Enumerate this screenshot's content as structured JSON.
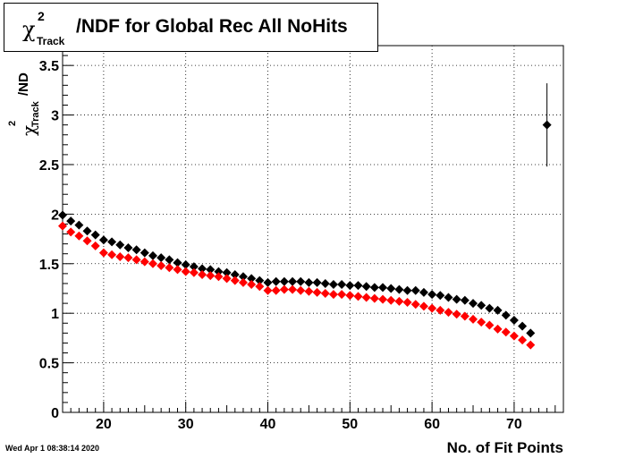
{
  "title": {
    "symbol": "χ",
    "superscript": "2",
    "subscript": "Track",
    "rest": "/NDF for Global Rec All NoHits"
  },
  "ylabel": {
    "symbol": "χ",
    "superscript": "2",
    "subscript": "Track",
    "rest": "/ND"
  },
  "xlabel": "No. of Fit Points",
  "timestamp": "Wed Apr  1 08:38:14 2020",
  "colors": {
    "series_black": "#000000",
    "series_red": "#ff0000",
    "background": "#ffffff"
  },
  "chart_data": {
    "type": "scatter",
    "title": "χ2Track/NDF for Global Rec All NoHits",
    "xlabel": "No. of Fit Points",
    "ylabel": "χ2Track/ND",
    "xlim": [
      15,
      76
    ],
    "ylim": [
      0,
      3.7
    ],
    "grid": true,
    "x_ticks": [
      20,
      30,
      40,
      50,
      60,
      70
    ],
    "y_ticks": [
      0,
      0.5,
      1,
      1.5,
      2,
      2.5,
      3,
      3.5
    ],
    "x_tick_labels": [
      "20",
      "30",
      "40",
      "50",
      "60",
      "70"
    ],
    "y_tick_labels": [
      "0",
      "0.5",
      "1",
      "1.5",
      "2",
      "2.5",
      "3",
      "3.5"
    ],
    "series": [
      {
        "color": "#000000",
        "x": [
          15,
          16,
          17,
          18,
          19,
          20,
          21,
          22,
          23,
          24,
          25,
          26,
          27,
          28,
          29,
          30,
          31,
          32,
          33,
          34,
          35,
          36,
          37,
          38,
          39,
          40,
          41,
          42,
          43,
          44,
          45,
          46,
          47,
          48,
          49,
          50,
          51,
          52,
          53,
          54,
          55,
          56,
          57,
          58,
          59,
          60,
          61,
          62,
          63,
          64,
          65,
          66,
          67,
          68,
          69,
          70,
          71,
          72,
          74
        ],
        "y": [
          1.99,
          1.93,
          1.89,
          1.83,
          1.79,
          1.74,
          1.72,
          1.69,
          1.66,
          1.64,
          1.61,
          1.58,
          1.56,
          1.54,
          1.51,
          1.49,
          1.47,
          1.45,
          1.44,
          1.42,
          1.41,
          1.39,
          1.37,
          1.35,
          1.33,
          1.31,
          1.32,
          1.32,
          1.32,
          1.32,
          1.31,
          1.31,
          1.3,
          1.29,
          1.29,
          1.28,
          1.28,
          1.27,
          1.26,
          1.26,
          1.25,
          1.24,
          1.23,
          1.23,
          1.21,
          1.19,
          1.18,
          1.16,
          1.14,
          1.13,
          1.1,
          1.08,
          1.05,
          1.03,
          0.98,
          0.93,
          0.87,
          0.8,
          2.9
        ],
        "y_error": {
          "74": 0.42
        }
      },
      {
        "color": "#ff0000",
        "x": [
          15,
          16,
          17,
          18,
          19,
          20,
          21,
          22,
          23,
          24,
          25,
          26,
          27,
          28,
          29,
          30,
          31,
          32,
          33,
          34,
          35,
          36,
          37,
          38,
          39,
          40,
          41,
          42,
          43,
          44,
          45,
          46,
          47,
          48,
          49,
          50,
          51,
          52,
          53,
          54,
          55,
          56,
          57,
          58,
          59,
          60,
          61,
          62,
          63,
          64,
          65,
          66,
          67,
          68,
          69,
          70,
          71,
          72
        ],
        "y": [
          1.88,
          1.82,
          1.78,
          1.73,
          1.68,
          1.61,
          1.59,
          1.57,
          1.56,
          1.54,
          1.52,
          1.5,
          1.48,
          1.46,
          1.44,
          1.42,
          1.41,
          1.39,
          1.38,
          1.37,
          1.35,
          1.33,
          1.31,
          1.29,
          1.27,
          1.23,
          1.23,
          1.24,
          1.24,
          1.23,
          1.22,
          1.21,
          1.2,
          1.19,
          1.19,
          1.18,
          1.17,
          1.16,
          1.15,
          1.14,
          1.13,
          1.12,
          1.11,
          1.09,
          1.07,
          1.05,
          1.03,
          1.01,
          0.99,
          0.97,
          0.94,
          0.91,
          0.88,
          0.84,
          0.81,
          0.77,
          0.73,
          0.68
        ]
      }
    ]
  }
}
